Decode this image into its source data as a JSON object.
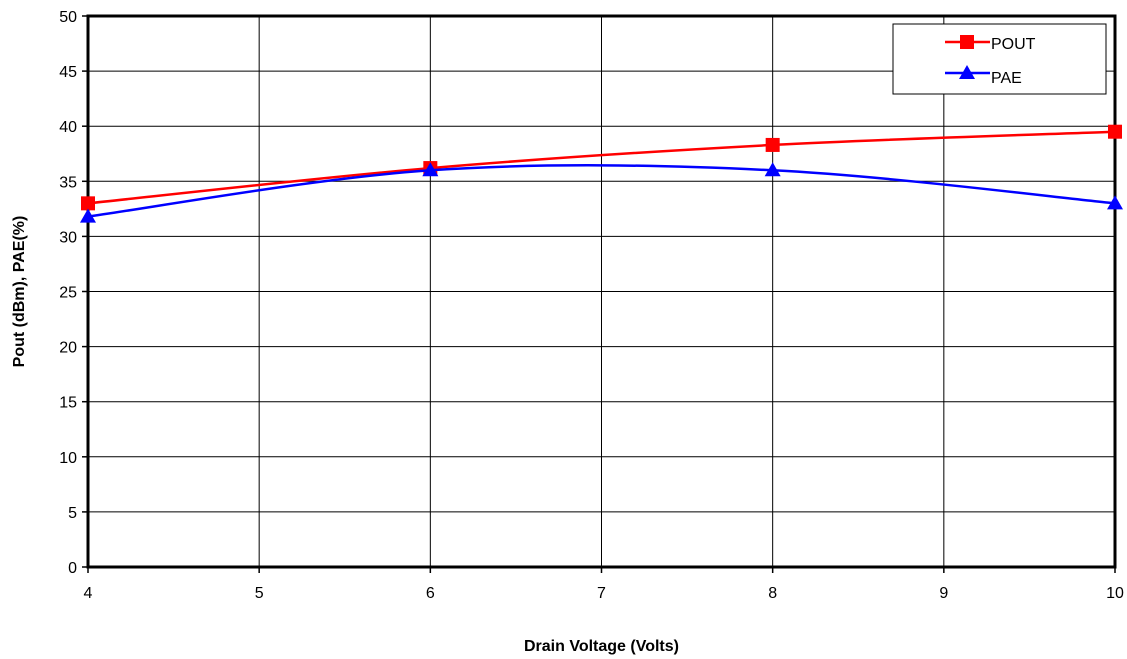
{
  "chart_data": {
    "type": "line",
    "xlabel": "Drain Voltage (Volts)",
    "ylabel": "Pout (dBm), PAE(%)",
    "xlim": [
      4,
      10
    ],
    "ylim": [
      0,
      50
    ],
    "x_ticks": [
      "4",
      "5",
      "6",
      "7",
      "8",
      "9",
      "10"
    ],
    "y_ticks": [
      "0",
      "5",
      "10",
      "15",
      "20",
      "25",
      "30",
      "35",
      "40",
      "45",
      "50"
    ],
    "grid": true,
    "legend_position": "top-right",
    "series": [
      {
        "name": "POUT",
        "color": "#ff0000",
        "marker": "square",
        "x": [
          4,
          6,
          8,
          10
        ],
        "y": [
          33.0,
          36.2,
          38.3,
          39.5
        ]
      },
      {
        "name": "PAE",
        "color": "#0000ff",
        "marker": "triangle",
        "x": [
          4,
          6,
          8,
          10
        ],
        "y": [
          31.8,
          36.0,
          36.0,
          33.0
        ]
      }
    ]
  }
}
